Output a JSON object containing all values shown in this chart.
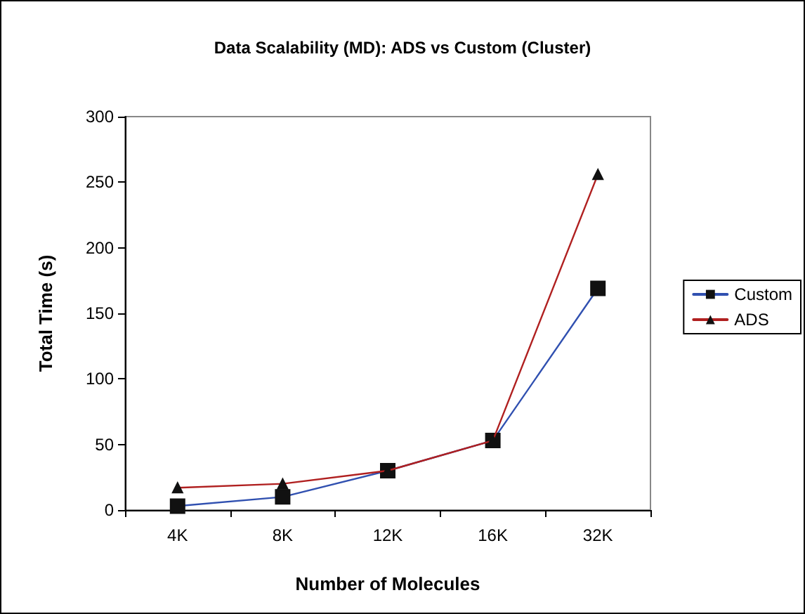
{
  "chart_data": {
    "type": "line",
    "title": "Data Scalability (MD): ADS vs Custom (Cluster)",
    "xlabel": "Number of Molecules",
    "ylabel": "Total Time (s)",
    "categories": [
      "4K",
      "8K",
      "12K",
      "16K",
      "32K"
    ],
    "series": [
      {
        "name": "Custom",
        "color": "#3050b0",
        "marker": "square",
        "values": [
          3,
          10,
          30,
          53,
          169
        ]
      },
      {
        "name": "ADS",
        "color": "#b02020",
        "marker": "triangle",
        "values": [
          17,
          20,
          30,
          53,
          256
        ]
      }
    ],
    "ylim": [
      0,
      300
    ],
    "yticks": [
      0,
      50,
      100,
      150,
      200,
      250,
      300
    ],
    "grid": false,
    "legend": "right"
  }
}
